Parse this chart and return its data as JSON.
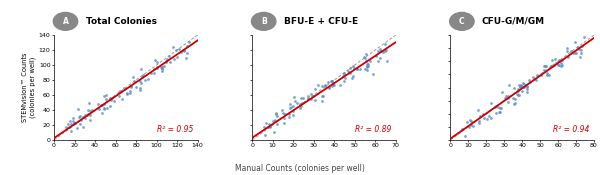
{
  "panels": [
    {
      "label": "A",
      "title": "Total Colonies",
      "r2": "R² = 0.95",
      "xlim": [
        0,
        140
      ],
      "ylim": [
        0,
        140
      ],
      "xticks": [
        0,
        20,
        40,
        60,
        80,
        100,
        120,
        140
      ],
      "yticks": [
        0,
        20,
        40,
        60,
        80,
        100,
        120,
        140
      ],
      "fit_slope": 0.93,
      "fit_intercept": 2.5,
      "identity_end": 140
    },
    {
      "label": "B",
      "title": "BFU-E + CFU-E",
      "r2": "R² = 0.89",
      "xlim": [
        0,
        70
      ],
      "ylim": [
        0,
        70
      ],
      "xticks": [
        0,
        10,
        20,
        30,
        40,
        50,
        60,
        70
      ],
      "yticks": [
        0,
        10,
        20,
        30,
        40,
        50,
        60,
        70
      ],
      "fit_slope": 0.91,
      "fit_intercept": 1.5,
      "identity_end": 70
    },
    {
      "label": "C",
      "title": "CFU-G/M/GM",
      "r2": "R² = 0.94",
      "xlim": [
        0,
        80
      ],
      "ylim": [
        0,
        80
      ],
      "xticks": [
        0,
        10,
        20,
        30,
        40,
        50,
        60,
        70,
        80
      ],
      "yticks": [
        0,
        10,
        20,
        30,
        40,
        50,
        60,
        70,
        80
      ],
      "fit_slope": 0.96,
      "fit_intercept": 1.0,
      "identity_end": 80
    }
  ],
  "scatter_color": "#5b8ec4",
  "fit_line_color": "#cc0000",
  "identity_line_color": "#999999",
  "r2_color": "#cc0000",
  "xlabel": "Manual Counts (colonies per well)",
  "ylabel": "STEMvision™ Counts\n(colonies per well)",
  "label_circle_color": "#888888",
  "background": "#ffffff",
  "panel_bg": "#ffffff",
  "dot_size": 4,
  "dot_alpha": 0.8,
  "seeds": [
    42,
    99,
    7
  ]
}
